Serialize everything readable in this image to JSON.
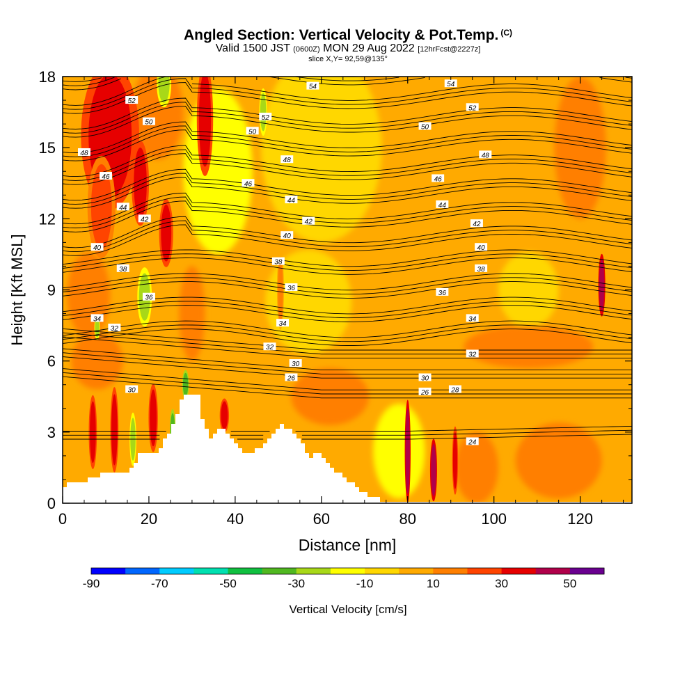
{
  "title": {
    "main": "Angled Section: Vertical Velocity & Pot.Temp.",
    "copyright": "(C)",
    "valid_prefix": "Valid 1500 JST",
    "valid_utc": "(0600Z)",
    "valid_date": "MON 29 Aug 2022",
    "forecast": "[12hrFcst@2227z]",
    "slice": "slice X,Y= 92,59@135°"
  },
  "chart_data": {
    "type": "heatmap",
    "xlabel": "Distance [nm]",
    "ylabel": "Height [Kft MSL]",
    "xlim": [
      0,
      132
    ],
    "ylim": [
      0,
      18
    ],
    "x_ticks": [
      0,
      20,
      40,
      60,
      80,
      100,
      120
    ],
    "y_ticks": [
      0,
      3,
      6,
      9,
      12,
      15,
      18
    ],
    "colorbar": {
      "label": "Vertical Velocity [cm/s]",
      "levels": [
        -90,
        -80,
        -70,
        -60,
        -50,
        -40,
        -30,
        -20,
        -10,
        0,
        10,
        20,
        30,
        40,
        50,
        60
      ],
      "tick_labels": [
        -90,
        -70,
        -50,
        -30,
        -10,
        10,
        30,
        50
      ],
      "colors": [
        "#0000ff",
        "#0066ff",
        "#00ccff",
        "#00e0b0",
        "#10c040",
        "#50b820",
        "#a8d818",
        "#ffff00",
        "#ffd700",
        "#ffaa00",
        "#ff7f00",
        "#ff4400",
        "#e60000",
        "#b0004a",
        "#6a0090"
      ]
    },
    "terrain": [
      [
        0,
        0.6
      ],
      [
        1,
        0.9
      ],
      [
        6,
        1.0
      ],
      [
        9,
        1.3
      ],
      [
        14,
        1.3
      ],
      [
        16,
        1.6
      ],
      [
        18,
        2.2
      ],
      [
        22,
        2.2
      ],
      [
        24,
        2.9
      ],
      [
        26,
        3.6
      ],
      [
        27,
        4.3
      ],
      [
        28,
        4.6
      ],
      [
        31,
        4.6
      ],
      [
        32,
        3.6
      ],
      [
        34,
        2.6
      ],
      [
        36,
        3.2
      ],
      [
        38,
        2.9
      ],
      [
        40,
        2.4
      ],
      [
        42,
        2.1
      ],
      [
        46,
        2.3
      ],
      [
        48,
        2.9
      ],
      [
        50,
        3.3
      ],
      [
        53,
        3.1
      ],
      [
        55,
        2.6
      ],
      [
        57,
        1.8
      ],
      [
        59,
        2.2
      ],
      [
        61,
        1.6
      ],
      [
        64,
        1.2
      ],
      [
        66,
        0.9
      ],
      [
        70,
        0.4
      ],
      [
        72,
        0.2
      ],
      [
        75,
        0.1
      ]
    ],
    "updrafts": [
      {
        "x": 11,
        "y": 15.5,
        "rx": 5,
        "ry": 2.6,
        "w": 30
      },
      {
        "x": 9,
        "y": 12.5,
        "rx": 2.4,
        "ry": 1.8,
        "w": 20
      },
      {
        "x": 18,
        "y": 13.5,
        "rx": 1.5,
        "ry": 1.5,
        "w": 30
      },
      {
        "x": 24,
        "y": 11.4,
        "rx": 1.2,
        "ry": 1.2,
        "w": 30
      },
      {
        "x": 33,
        "y": 16.2,
        "rx": 1.4,
        "ry": 2.0,
        "w": 30
      },
      {
        "x": 7,
        "y": 3.0,
        "rx": 0.7,
        "ry": 1.3,
        "w": 30
      },
      {
        "x": 12,
        "y": 3.1,
        "rx": 0.7,
        "ry": 1.5,
        "w": 30
      },
      {
        "x": 21,
        "y": 3.6,
        "rx": 0.8,
        "ry": 1.2,
        "w": 30
      },
      {
        "x": 37.5,
        "y": 3.7,
        "rx": 0.8,
        "ry": 0.6,
        "w": 30
      },
      {
        "x": 80,
        "y": 2.2,
        "rx": 0.5,
        "ry": 1.8,
        "w": 40
      },
      {
        "x": 86,
        "y": 1.4,
        "rx": 0.6,
        "ry": 1.1,
        "w": 40
      },
      {
        "x": 91,
        "y": 1.8,
        "rx": 0.5,
        "ry": 1.2,
        "w": 30
      },
      {
        "x": 125,
        "y": 9.2,
        "rx": 0.6,
        "ry": 1.1,
        "w": 40
      },
      {
        "x": 50.5,
        "y": 9.0,
        "rx": 0.6,
        "ry": 1.4,
        "w": 10
      }
    ],
    "downdrafts": [
      {
        "x": 23.5,
        "y": 17.7,
        "rx": 1.3,
        "ry": 0.8,
        "w": -30
      },
      {
        "x": 46.5,
        "y": 16.5,
        "rx": 0.7,
        "ry": 0.8,
        "w": -30
      },
      {
        "x": 19,
        "y": 8.7,
        "rx": 1.3,
        "ry": 1.0,
        "w": -30
      },
      {
        "x": 16.3,
        "y": 2.7,
        "rx": 0.6,
        "ry": 0.9,
        "w": -30
      },
      {
        "x": 25.5,
        "y": 3.1,
        "rx": 0.5,
        "ry": 0.7,
        "w": -40
      },
      {
        "x": 28.5,
        "y": 5.0,
        "rx": 0.6,
        "ry": 0.5,
        "w": -40
      },
      {
        "x": 8,
        "y": 7.4,
        "rx": 0.5,
        "ry": 0.4,
        "w": -30
      }
    ],
    "isentropes": {
      "levels": [
        24,
        26,
        28,
        30,
        32,
        34,
        36,
        38,
        40,
        42,
        44,
        46,
        48,
        50,
        52,
        54
      ],
      "labels": [
        {
          "x": 95,
          "y": 2.6,
          "v": "24"
        },
        {
          "x": 53,
          "y": 5.3,
          "v": "26"
        },
        {
          "x": 84,
          "y": 4.7,
          "v": "26"
        },
        {
          "x": 54,
          "y": 5.9,
          "v": "30"
        },
        {
          "x": 84,
          "y": 5.3,
          "v": "30"
        },
        {
          "x": 91,
          "y": 4.8,
          "v": "28"
        },
        {
          "x": 16,
          "y": 4.8,
          "v": "30"
        },
        {
          "x": 48,
          "y": 6.6,
          "v": "32"
        },
        {
          "x": 95,
          "y": 6.3,
          "v": "32"
        },
        {
          "x": 12,
          "y": 7.4,
          "v": "32"
        },
        {
          "x": 8,
          "y": 7.8,
          "v": "34"
        },
        {
          "x": 51,
          "y": 7.6,
          "v": "34"
        },
        {
          "x": 95,
          "y": 7.8,
          "v": "34"
        },
        {
          "x": 20,
          "y": 8.7,
          "v": "36"
        },
        {
          "x": 53,
          "y": 9.1,
          "v": "36"
        },
        {
          "x": 88,
          "y": 8.9,
          "v": "36"
        },
        {
          "x": 14,
          "y": 9.9,
          "v": "38"
        },
        {
          "x": 50,
          "y": 10.2,
          "v": "38"
        },
        {
          "x": 97,
          "y": 9.9,
          "v": "38"
        },
        {
          "x": 8,
          "y": 10.8,
          "v": "40"
        },
        {
          "x": 52,
          "y": 11.3,
          "v": "40"
        },
        {
          "x": 97,
          "y": 10.8,
          "v": "40"
        },
        {
          "x": 19,
          "y": 12.0,
          "v": "42"
        },
        {
          "x": 57,
          "y": 11.9,
          "v": "42"
        },
        {
          "x": 96,
          "y": 11.8,
          "v": "42"
        },
        {
          "x": 14,
          "y": 12.5,
          "v": "44"
        },
        {
          "x": 53,
          "y": 12.8,
          "v": "44"
        },
        {
          "x": 88,
          "y": 12.6,
          "v": "44"
        },
        {
          "x": 10,
          "y": 13.8,
          "v": "46"
        },
        {
          "x": 43,
          "y": 13.5,
          "v": "46"
        },
        {
          "x": 87,
          "y": 13.7,
          "v": "46"
        },
        {
          "x": 5,
          "y": 14.8,
          "v": "48"
        },
        {
          "x": 52,
          "y": 14.5,
          "v": "48"
        },
        {
          "x": 98,
          "y": 14.7,
          "v": "48"
        },
        {
          "x": 20,
          "y": 16.1,
          "v": "50"
        },
        {
          "x": 44,
          "y": 15.7,
          "v": "50"
        },
        {
          "x": 84,
          "y": 15.9,
          "v": "50"
        },
        {
          "x": 16,
          "y": 17.0,
          "v": "52"
        },
        {
          "x": 47,
          "y": 16.3,
          "v": "52"
        },
        {
          "x": 95,
          "y": 16.7,
          "v": "52"
        },
        {
          "x": 58,
          "y": 17.6,
          "v": "54"
        },
        {
          "x": 90,
          "y": 17.7,
          "v": "54"
        }
      ]
    }
  }
}
